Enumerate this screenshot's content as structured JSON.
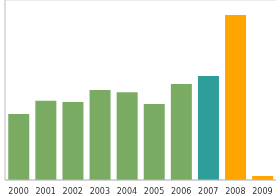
{
  "chart_data": {
    "type": "bar",
    "categories": [
      "2000",
      "2001",
      "2002",
      "2003",
      "2004",
      "2005",
      "2006",
      "2007",
      "2008",
      "2009"
    ],
    "values": [
      1.83,
      2.2,
      2.17,
      2.5,
      2.44,
      2.11,
      2.67,
      2.89,
      4.58,
      0.11
    ],
    "colors": [
      "#7aab63",
      "#7aab63",
      "#7aab63",
      "#7aab63",
      "#7aab63",
      "#7aab63",
      "#7aab63",
      "#2e9e9a",
      "#ffa500",
      "#ffa500"
    ],
    "ylim": [
      0,
      5
    ],
    "yticks": [
      0,
      1,
      2,
      3,
      4,
      5
    ],
    "grid": true,
    "tick_labels": "x"
  }
}
